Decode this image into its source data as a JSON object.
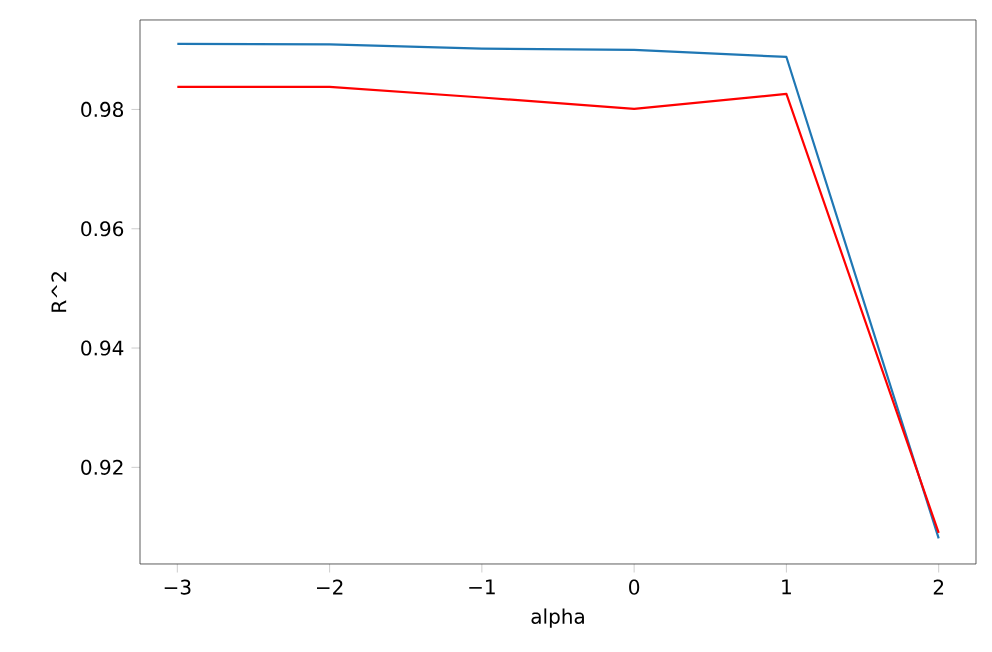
{
  "chart_data": {
    "type": "line",
    "xlabel": "alpha",
    "ylabel": "R^2",
    "x": [
      -3,
      -2,
      -1,
      0,
      1,
      2
    ],
    "series": [
      {
        "color": "#1f77b4",
        "values": [
          0.991,
          0.9909,
          0.9902,
          0.99,
          0.9888,
          0.9081
        ]
      },
      {
        "color": "#ff0000",
        "values": [
          0.9838,
          0.9838,
          0.982,
          0.9801,
          0.9826,
          0.909
        ]
      }
    ],
    "xlim": [
      -3.245,
      2.245
    ],
    "ylim": [
      0.9038,
      0.995
    ],
    "xticks": [
      {
        "value": -3,
        "label": "−3"
      },
      {
        "value": -2,
        "label": "−2"
      },
      {
        "value": -1,
        "label": "−1"
      },
      0,
      1,
      2
    ],
    "yticks": [
      0.92,
      0.94,
      0.96,
      0.98
    ],
    "marker": "none",
    "line_style": "solid"
  }
}
